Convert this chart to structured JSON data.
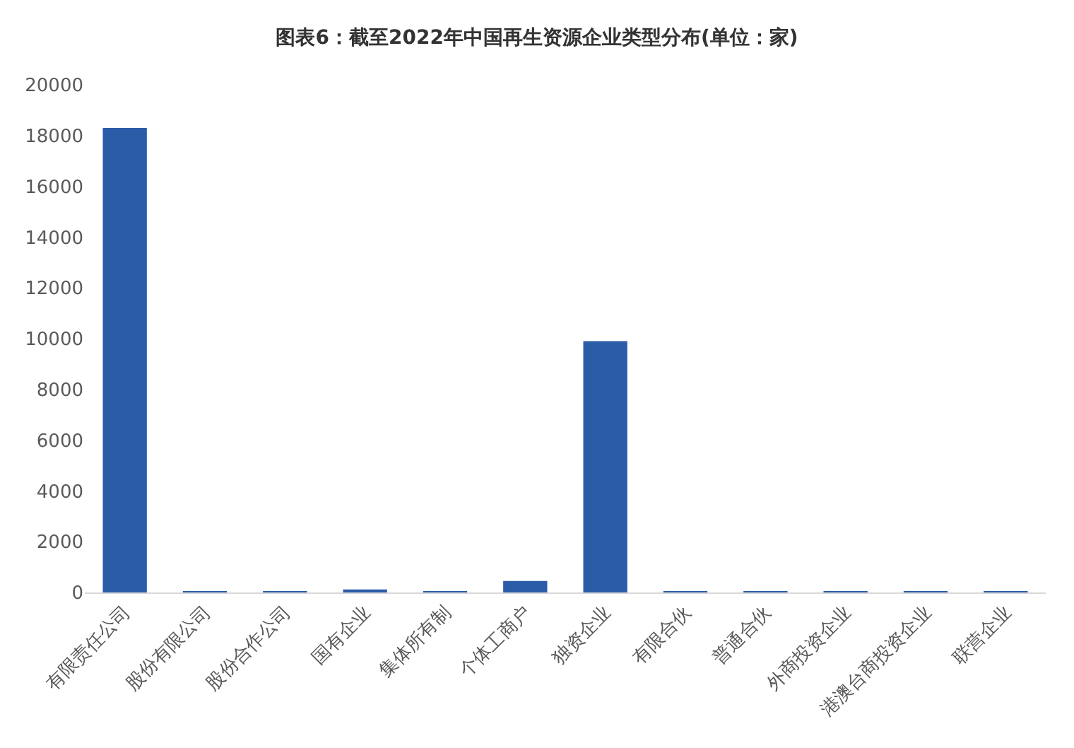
{
  "chart_data": {
    "type": "bar",
    "title": "图表6：截至2022年中国再生资源企业类型分布(单位：家)",
    "categories": [
      "有限责任公司",
      "股份有限公司",
      "股份合作公司",
      "国有企业",
      "集体所有制",
      "个体工商户",
      "独资企业",
      "有限合伙",
      "普通合伙",
      "外商投资企业",
      "港澳台商投资企业",
      "联营企业"
    ],
    "values": [
      18300,
      40,
      30,
      120,
      40,
      450,
      9900,
      30,
      30,
      30,
      40,
      40
    ],
    "color": "#2a5ca8",
    "ylim": [
      0,
      20000
    ],
    "yticks": [
      0,
      2000,
      4000,
      6000,
      8000,
      10000,
      12000,
      14000,
      16000,
      18000,
      20000
    ]
  }
}
